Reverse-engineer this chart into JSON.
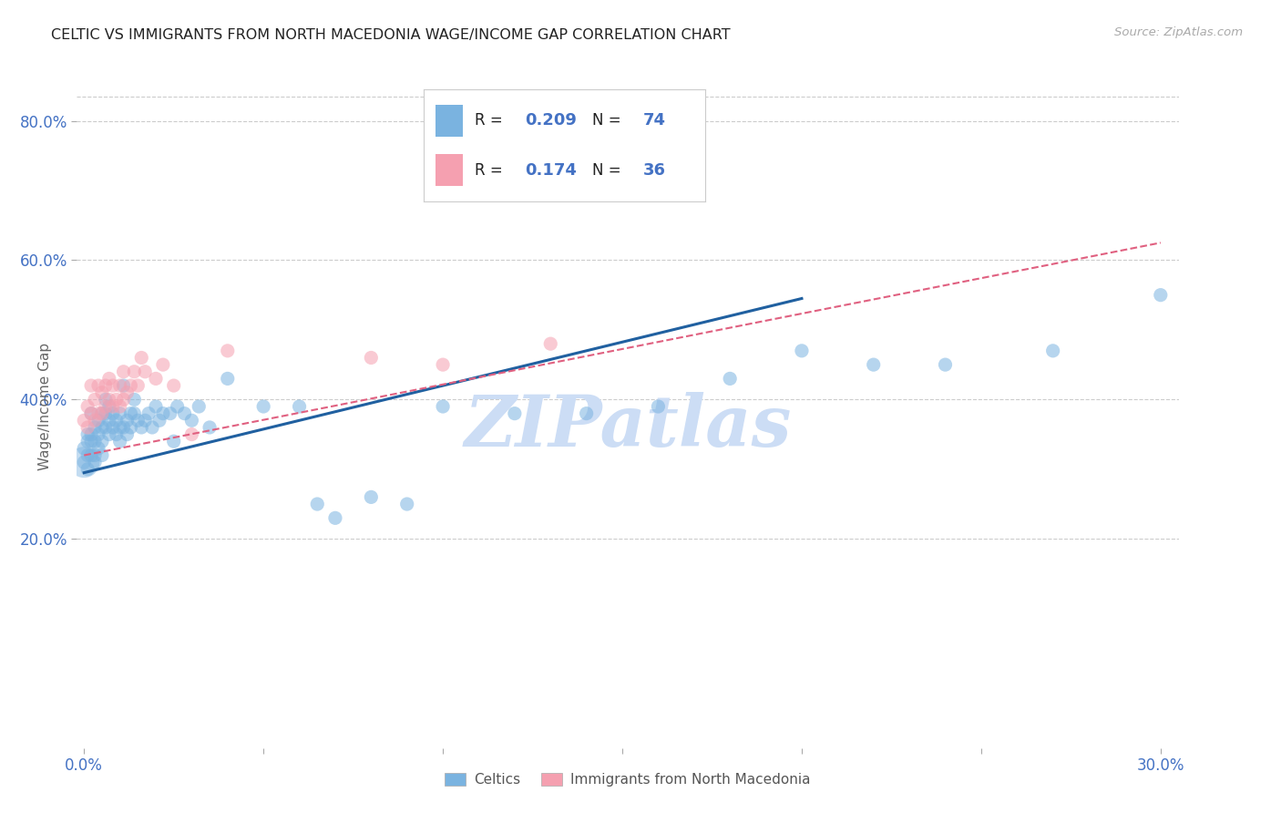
{
  "title": "CELTIC VS IMMIGRANTS FROM NORTH MACEDONIA WAGE/INCOME GAP CORRELATION CHART",
  "source": "Source: ZipAtlas.com",
  "ylabel": "Wage/Income Gap",
  "xlabel": "",
  "xlim": [
    -0.002,
    0.305
  ],
  "ylim": [
    -0.1,
    0.88
  ],
  "xticks": [
    0.0,
    0.05,
    0.1,
    0.15,
    0.2,
    0.25,
    0.3
  ],
  "xtick_labels": [
    "0.0%",
    "",
    "",
    "",
    "",
    "",
    "30.0%"
  ],
  "yticks": [
    0.2,
    0.4,
    0.6,
    0.8
  ],
  "ytick_labels": [
    "20.0%",
    "40.0%",
    "60.0%",
    "80.0%"
  ],
  "celtics_color": "#7ab3e0",
  "nmacedonia_color": "#f5a0b0",
  "celtics_line_color": "#2060a0",
  "nmacedonia_line_color": "#e06080",
  "R_celtics": 0.209,
  "N_celtics": 74,
  "R_nmacedonia": 0.174,
  "N_nmacedonia": 36,
  "watermark": "ZIPatlas",
  "watermark_color": "#ccddf5",
  "background_color": "#ffffff",
  "grid_color": "#cccccc",
  "celtics_x": [
    0.0,
    0.0,
    0.001,
    0.001,
    0.001,
    0.001,
    0.002,
    0.002,
    0.002,
    0.002,
    0.003,
    0.003,
    0.003,
    0.003,
    0.004,
    0.004,
    0.004,
    0.005,
    0.005,
    0.005,
    0.005,
    0.006,
    0.006,
    0.006,
    0.007,
    0.007,
    0.007,
    0.008,
    0.008,
    0.009,
    0.009,
    0.01,
    0.01,
    0.01,
    0.011,
    0.011,
    0.012,
    0.012,
    0.013,
    0.013,
    0.014,
    0.014,
    0.015,
    0.016,
    0.017,
    0.018,
    0.019,
    0.02,
    0.021,
    0.022,
    0.024,
    0.025,
    0.026,
    0.028,
    0.03,
    0.032,
    0.035,
    0.04,
    0.05,
    0.06,
    0.065,
    0.07,
    0.08,
    0.09,
    0.1,
    0.12,
    0.14,
    0.16,
    0.18,
    0.2,
    0.22,
    0.24,
    0.27,
    0.3
  ],
  "celtics_y": [
    0.33,
    0.31,
    0.34,
    0.32,
    0.35,
    0.3,
    0.34,
    0.32,
    0.35,
    0.38,
    0.36,
    0.34,
    0.32,
    0.31,
    0.35,
    0.33,
    0.37,
    0.36,
    0.34,
    0.38,
    0.32,
    0.36,
    0.38,
    0.4,
    0.35,
    0.37,
    0.39,
    0.36,
    0.38,
    0.35,
    0.37,
    0.36,
    0.34,
    0.38,
    0.36,
    0.42,
    0.37,
    0.35,
    0.36,
    0.38,
    0.38,
    0.4,
    0.37,
    0.36,
    0.37,
    0.38,
    0.36,
    0.39,
    0.37,
    0.38,
    0.38,
    0.34,
    0.39,
    0.38,
    0.37,
    0.39,
    0.36,
    0.43,
    0.39,
    0.39,
    0.25,
    0.23,
    0.26,
    0.25,
    0.39,
    0.38,
    0.38,
    0.39,
    0.43,
    0.47,
    0.45,
    0.45,
    0.47,
    0.55
  ],
  "celtics_s_large": [
    0
  ],
  "celtics_large_x": [
    0.0
  ],
  "celtics_large_y": [
    0.31
  ],
  "nmacedonia_x": [
    0.0,
    0.001,
    0.001,
    0.002,
    0.002,
    0.003,
    0.003,
    0.004,
    0.004,
    0.005,
    0.005,
    0.006,
    0.006,
    0.007,
    0.007,
    0.008,
    0.008,
    0.009,
    0.01,
    0.01,
    0.011,
    0.011,
    0.012,
    0.013,
    0.014,
    0.015,
    0.016,
    0.017,
    0.02,
    0.022,
    0.025,
    0.03,
    0.04,
    0.08,
    0.1,
    0.13
  ],
  "nmacedonia_y": [
    0.37,
    0.36,
    0.39,
    0.38,
    0.42,
    0.37,
    0.4,
    0.38,
    0.42,
    0.38,
    0.41,
    0.39,
    0.42,
    0.4,
    0.43,
    0.39,
    0.42,
    0.4,
    0.39,
    0.42,
    0.4,
    0.44,
    0.41,
    0.42,
    0.44,
    0.42,
    0.46,
    0.44,
    0.43,
    0.45,
    0.42,
    0.35,
    0.47,
    0.46,
    0.45,
    0.48
  ],
  "point_size": 120,
  "large_point_size": 600,
  "celtics_line_x0": 0.0,
  "celtics_line_y0": 0.295,
  "celtics_line_x1": 0.2,
  "celtics_line_y1": 0.545,
  "nmac_line_x0": 0.0,
  "nmac_line_y0": 0.32,
  "nmac_line_x1": 0.3,
  "nmac_line_y1": 0.625
}
